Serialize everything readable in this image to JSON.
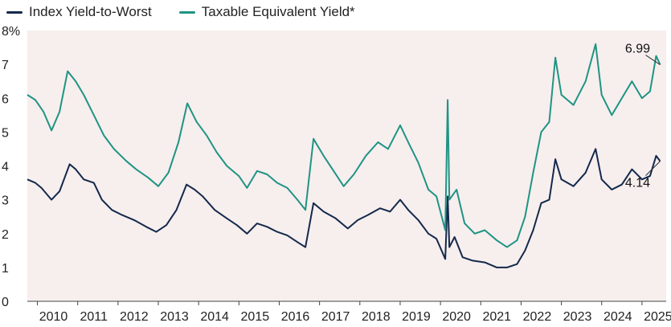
{
  "chart_data": {
    "type": "line",
    "legend_position": "top-left",
    "grid": false,
    "background_color": "#f7eeee",
    "ylim": [
      0,
      8
    ],
    "xlim": [
      2009.75,
      2025.6
    ],
    "y_ticks": [
      "0",
      "1",
      "2",
      "3",
      "4",
      "5",
      "6",
      "7",
      "8%"
    ],
    "x_ticks": [
      "2010",
      "2011",
      "2012",
      "2013",
      "2014",
      "2015",
      "2016",
      "2017",
      "2018",
      "2019",
      "2020",
      "2021",
      "2022",
      "2023",
      "2024",
      "2025"
    ],
    "series": [
      {
        "name": "Index Yield-to-Worst",
        "color": "#13294b",
        "points": [
          [
            2009.75,
            3.6
          ],
          [
            2009.95,
            3.5
          ],
          [
            2010.1,
            3.35
          ],
          [
            2010.35,
            3.0
          ],
          [
            2010.55,
            3.25
          ],
          [
            2010.8,
            4.05
          ],
          [
            2010.95,
            3.9
          ],
          [
            2011.15,
            3.6
          ],
          [
            2011.4,
            3.5
          ],
          [
            2011.6,
            3.0
          ],
          [
            2011.85,
            2.7
          ],
          [
            2012.1,
            2.55
          ],
          [
            2012.4,
            2.4
          ],
          [
            2012.7,
            2.2
          ],
          [
            2012.95,
            2.05
          ],
          [
            2013.2,
            2.25
          ],
          [
            2013.45,
            2.7
          ],
          [
            2013.7,
            3.45
          ],
          [
            2013.9,
            3.3
          ],
          [
            2014.1,
            3.1
          ],
          [
            2014.4,
            2.7
          ],
          [
            2014.7,
            2.45
          ],
          [
            2014.95,
            2.25
          ],
          [
            2015.2,
            2.0
          ],
          [
            2015.45,
            2.3
          ],
          [
            2015.7,
            2.2
          ],
          [
            2015.95,
            2.05
          ],
          [
            2016.2,
            1.95
          ],
          [
            2016.45,
            1.75
          ],
          [
            2016.65,
            1.6
          ],
          [
            2016.85,
            2.9
          ],
          [
            2017.1,
            2.65
          ],
          [
            2017.4,
            2.45
          ],
          [
            2017.7,
            2.15
          ],
          [
            2017.95,
            2.4
          ],
          [
            2018.2,
            2.55
          ],
          [
            2018.5,
            2.75
          ],
          [
            2018.75,
            2.65
          ],
          [
            2019.0,
            3.0
          ],
          [
            2019.2,
            2.7
          ],
          [
            2019.45,
            2.4
          ],
          [
            2019.7,
            2.0
          ],
          [
            2019.9,
            1.85
          ],
          [
            2020.12,
            1.25
          ],
          [
            2020.18,
            3.1
          ],
          [
            2020.22,
            1.6
          ],
          [
            2020.35,
            1.9
          ],
          [
            2020.55,
            1.3
          ],
          [
            2020.8,
            1.2
          ],
          [
            2021.1,
            1.15
          ],
          [
            2021.4,
            1.0
          ],
          [
            2021.65,
            1.0
          ],
          [
            2021.9,
            1.1
          ],
          [
            2022.1,
            1.5
          ],
          [
            2022.3,
            2.1
          ],
          [
            2022.5,
            2.9
          ],
          [
            2022.7,
            3.0
          ],
          [
            2022.85,
            4.2
          ],
          [
            2023.0,
            3.6
          ],
          [
            2023.3,
            3.4
          ],
          [
            2023.6,
            3.8
          ],
          [
            2023.85,
            4.5
          ],
          [
            2024.0,
            3.6
          ],
          [
            2024.25,
            3.3
          ],
          [
            2024.5,
            3.45
          ],
          [
            2024.75,
            3.9
          ],
          [
            2025.0,
            3.6
          ],
          [
            2025.2,
            3.7
          ],
          [
            2025.35,
            4.3
          ],
          [
            2025.45,
            4.14
          ]
        ]
      },
      {
        "name": "Taxable Equivalent Yield*",
        "color": "#1f9483",
        "points": [
          [
            2009.75,
            6.1
          ],
          [
            2009.95,
            5.95
          ],
          [
            2010.15,
            5.6
          ],
          [
            2010.35,
            5.05
          ],
          [
            2010.55,
            5.6
          ],
          [
            2010.75,
            6.8
          ],
          [
            2010.95,
            6.5
          ],
          [
            2011.15,
            6.1
          ],
          [
            2011.4,
            5.5
          ],
          [
            2011.65,
            4.9
          ],
          [
            2011.9,
            4.5
          ],
          [
            2012.2,
            4.15
          ],
          [
            2012.45,
            3.9
          ],
          [
            2012.75,
            3.65
          ],
          [
            2013.0,
            3.4
          ],
          [
            2013.25,
            3.8
          ],
          [
            2013.5,
            4.7
          ],
          [
            2013.72,
            5.85
          ],
          [
            2013.95,
            5.3
          ],
          [
            2014.2,
            4.9
          ],
          [
            2014.45,
            4.4
          ],
          [
            2014.7,
            4.0
          ],
          [
            2015.0,
            3.7
          ],
          [
            2015.2,
            3.35
          ],
          [
            2015.45,
            3.85
          ],
          [
            2015.7,
            3.75
          ],
          [
            2015.95,
            3.5
          ],
          [
            2016.2,
            3.35
          ],
          [
            2016.45,
            3.0
          ],
          [
            2016.65,
            2.7
          ],
          [
            2016.85,
            4.8
          ],
          [
            2017.1,
            4.3
          ],
          [
            2017.35,
            3.85
          ],
          [
            2017.6,
            3.4
          ],
          [
            2017.85,
            3.75
          ],
          [
            2018.15,
            4.3
          ],
          [
            2018.45,
            4.7
          ],
          [
            2018.7,
            4.5
          ],
          [
            2019.0,
            5.2
          ],
          [
            2019.2,
            4.7
          ],
          [
            2019.45,
            4.1
          ],
          [
            2019.7,
            3.3
          ],
          [
            2019.9,
            3.1
          ],
          [
            2020.12,
            2.1
          ],
          [
            2020.18,
            5.95
          ],
          [
            2020.22,
            3.0
          ],
          [
            2020.4,
            3.3
          ],
          [
            2020.6,
            2.3
          ],
          [
            2020.85,
            2.0
          ],
          [
            2021.1,
            2.1
          ],
          [
            2021.4,
            1.8
          ],
          [
            2021.65,
            1.6
          ],
          [
            2021.9,
            1.8
          ],
          [
            2022.1,
            2.5
          ],
          [
            2022.3,
            3.8
          ],
          [
            2022.5,
            5.0
          ],
          [
            2022.7,
            5.3
          ],
          [
            2022.85,
            7.2
          ],
          [
            2023.0,
            6.1
          ],
          [
            2023.3,
            5.8
          ],
          [
            2023.6,
            6.5
          ],
          [
            2023.85,
            7.6
          ],
          [
            2024.0,
            6.1
          ],
          [
            2024.25,
            5.5
          ],
          [
            2024.5,
            6.0
          ],
          [
            2024.75,
            6.5
          ],
          [
            2025.0,
            6.0
          ],
          [
            2025.2,
            6.2
          ],
          [
            2025.35,
            7.25
          ],
          [
            2025.45,
            6.99
          ]
        ]
      }
    ],
    "annotations": [
      {
        "text": "6.99",
        "series": 1,
        "x": 2025.45,
        "y": 6.99
      },
      {
        "text": "4.14",
        "series": 0,
        "x": 2025.45,
        "y": 4.14
      }
    ]
  }
}
